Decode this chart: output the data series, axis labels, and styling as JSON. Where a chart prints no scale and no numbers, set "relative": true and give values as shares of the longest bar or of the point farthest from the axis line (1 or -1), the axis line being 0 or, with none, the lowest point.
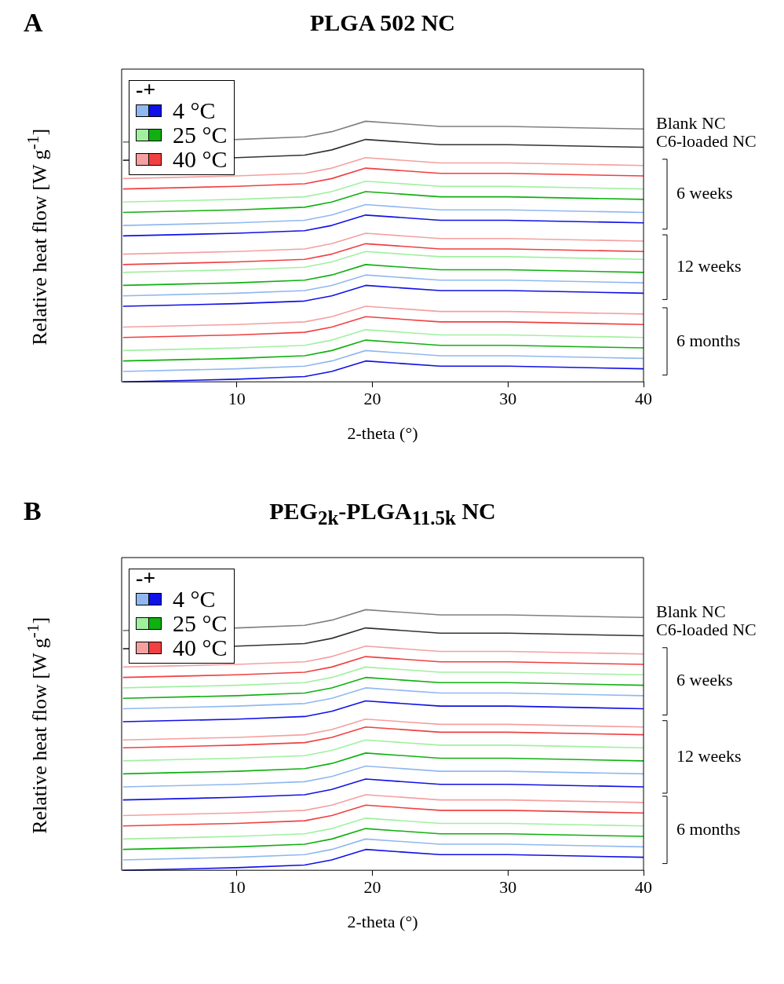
{
  "chart_data": [
    {
      "type": "line",
      "title": "PLGA 502 NC",
      "xlabel": "2-theta (°)",
      "ylabel": "Relative heat flow [W g$^{-1}$]",
      "relative": true,
      "marker": "none",
      "xlim": [
        1.5,
        40
      ],
      "xticks": [
        10,
        20,
        30,
        40
      ],
      "annotations": [
        "A",
        "6 weeks",
        "12 weeks",
        "6 months",
        "-+",
        "4 °C",
        "25 °C",
        "40 °C"
      ],
      "x": [
        1.6,
        10,
        15,
        17,
        19.5,
        25,
        30,
        40
      ],
      "series": [
        {
          "name": "Blank NC",
          "color": "#808080",
          "values": [
            0.92,
            0.93,
            0.94,
            0.96,
            1.0,
            0.98,
            0.98,
            0.97
          ]
        },
        {
          "name": "C6-loaded NC",
          "color": "#333333",
          "values": [
            0.85,
            0.86,
            0.87,
            0.89,
            0.93,
            0.91,
            0.91,
            0.9
          ]
        },
        {
          "color": "#f4a0a0",
          "values": [
            0.78,
            0.79,
            0.8,
            0.82,
            0.86,
            0.84,
            0.84,
            0.83
          ]
        },
        {
          "color": "#f04040",
          "values": [
            0.74,
            0.75,
            0.76,
            0.78,
            0.82,
            0.8,
            0.8,
            0.79
          ]
        },
        {
          "color": "#a0f0a0",
          "values": [
            0.69,
            0.7,
            0.71,
            0.73,
            0.77,
            0.75,
            0.75,
            0.74
          ]
        },
        {
          "color": "#10b010",
          "values": [
            0.65,
            0.66,
            0.67,
            0.69,
            0.73,
            0.71,
            0.71,
            0.7
          ]
        },
        {
          "color": "#90b8f0",
          "values": [
            0.6,
            0.61,
            0.62,
            0.64,
            0.68,
            0.66,
            0.66,
            0.65
          ]
        },
        {
          "color": "#1010e8",
          "values": [
            0.56,
            0.57,
            0.58,
            0.6,
            0.64,
            0.62,
            0.62,
            0.61
          ]
        },
        {
          "color": "#f4a0a0",
          "values": [
            0.49,
            0.5,
            0.51,
            0.53,
            0.57,
            0.55,
            0.55,
            0.54
          ]
        },
        {
          "color": "#f04040",
          "values": [
            0.45,
            0.46,
            0.47,
            0.49,
            0.53,
            0.51,
            0.51,
            0.5
          ]
        },
        {
          "color": "#a0f0a0",
          "values": [
            0.42,
            0.43,
            0.44,
            0.46,
            0.5,
            0.48,
            0.48,
            0.47
          ]
        },
        {
          "color": "#10b010",
          "values": [
            0.37,
            0.38,
            0.39,
            0.41,
            0.45,
            0.43,
            0.43,
            0.42
          ]
        },
        {
          "color": "#90b8f0",
          "values": [
            0.33,
            0.34,
            0.35,
            0.37,
            0.41,
            0.39,
            0.39,
            0.38
          ]
        },
        {
          "color": "#1010e8",
          "values": [
            0.29,
            0.3,
            0.31,
            0.33,
            0.37,
            0.35,
            0.35,
            0.34
          ]
        },
        {
          "color": "#f4a0a0",
          "values": [
            0.21,
            0.22,
            0.23,
            0.25,
            0.29,
            0.27,
            0.27,
            0.26
          ]
        },
        {
          "color": "#f04040",
          "values": [
            0.17,
            0.18,
            0.19,
            0.21,
            0.25,
            0.23,
            0.23,
            0.22
          ]
        },
        {
          "color": "#a0f0a0",
          "values": [
            0.12,
            0.13,
            0.14,
            0.16,
            0.2,
            0.18,
            0.18,
            0.17
          ]
        },
        {
          "color": "#10b010",
          "values": [
            0.08,
            0.09,
            0.1,
            0.12,
            0.16,
            0.14,
            0.14,
            0.13
          ]
        },
        {
          "color": "#90b8f0",
          "values": [
            0.04,
            0.05,
            0.06,
            0.08,
            0.12,
            0.1,
            0.1,
            0.09
          ]
        },
        {
          "color": "#1010e8",
          "values": [
            0.0,
            0.01,
            0.02,
            0.04,
            0.08,
            0.06,
            0.06,
            0.05
          ]
        }
      ]
    },
    {
      "type": "line",
      "title": "PEG$_{2k}$-PLGA$_{11.5k}$ NC",
      "xlabel": "2-theta (°)",
      "ylabel": "Relative heat flow [W g$^{-1}$]",
      "relative": true,
      "marker": "none",
      "xlim": [
        1.5,
        40
      ],
      "xticks": [
        10,
        20,
        30,
        40
      ],
      "annotations": [
        "B",
        "6 weeks",
        "12 weeks",
        "6 months",
        "-+",
        "4 °C",
        "25 °C",
        "40 °C"
      ],
      "x": [
        1.6,
        10,
        15,
        17,
        19.5,
        25,
        30,
        40
      ],
      "series": [
        {
          "name": "Blank NC",
          "color": "#808080",
          "values": [
            0.92,
            0.93,
            0.94,
            0.96,
            1.0,
            0.98,
            0.98,
            0.97
          ]
        },
        {
          "name": "C6-loaded NC",
          "color": "#333333",
          "values": [
            0.85,
            0.86,
            0.87,
            0.89,
            0.93,
            0.91,
            0.91,
            0.9
          ]
        },
        {
          "color": "#f4a0a0",
          "values": [
            0.78,
            0.79,
            0.8,
            0.82,
            0.86,
            0.84,
            0.84,
            0.83
          ]
        },
        {
          "color": "#f04040",
          "values": [
            0.74,
            0.75,
            0.76,
            0.78,
            0.82,
            0.8,
            0.8,
            0.79
          ]
        },
        {
          "color": "#a0f0a0",
          "values": [
            0.7,
            0.71,
            0.72,
            0.74,
            0.78,
            0.76,
            0.76,
            0.75
          ]
        },
        {
          "color": "#10b010",
          "values": [
            0.66,
            0.67,
            0.68,
            0.7,
            0.74,
            0.72,
            0.72,
            0.71
          ]
        },
        {
          "color": "#90b8f0",
          "values": [
            0.62,
            0.63,
            0.64,
            0.66,
            0.7,
            0.68,
            0.68,
            0.67
          ]
        },
        {
          "color": "#1010e8",
          "values": [
            0.57,
            0.58,
            0.59,
            0.61,
            0.65,
            0.63,
            0.63,
            0.62
          ]
        },
        {
          "color": "#f4a0a0",
          "values": [
            0.5,
            0.51,
            0.52,
            0.54,
            0.58,
            0.56,
            0.56,
            0.55
          ]
        },
        {
          "color": "#f04040",
          "values": [
            0.47,
            0.48,
            0.49,
            0.51,
            0.55,
            0.53,
            0.53,
            0.52
          ]
        },
        {
          "color": "#a0f0a0",
          "values": [
            0.42,
            0.43,
            0.44,
            0.46,
            0.5,
            0.48,
            0.48,
            0.47
          ]
        },
        {
          "color": "#10b010",
          "values": [
            0.37,
            0.38,
            0.39,
            0.41,
            0.45,
            0.43,
            0.43,
            0.42
          ]
        },
        {
          "color": "#90b8f0",
          "values": [
            0.32,
            0.33,
            0.34,
            0.36,
            0.4,
            0.38,
            0.38,
            0.37
          ]
        },
        {
          "color": "#1010e8",
          "values": [
            0.27,
            0.28,
            0.29,
            0.31,
            0.35,
            0.33,
            0.33,
            0.32
          ]
        },
        {
          "color": "#f4a0a0",
          "values": [
            0.21,
            0.22,
            0.23,
            0.25,
            0.29,
            0.27,
            0.27,
            0.26
          ]
        },
        {
          "color": "#f04040",
          "values": [
            0.17,
            0.18,
            0.19,
            0.21,
            0.25,
            0.23,
            0.23,
            0.22
          ]
        },
        {
          "color": "#a0f0a0",
          "values": [
            0.12,
            0.13,
            0.14,
            0.16,
            0.2,
            0.18,
            0.18,
            0.17
          ]
        },
        {
          "color": "#10b010",
          "values": [
            0.08,
            0.09,
            0.1,
            0.12,
            0.16,
            0.14,
            0.14,
            0.13
          ]
        },
        {
          "color": "#90b8f0",
          "values": [
            0.04,
            0.05,
            0.06,
            0.08,
            0.12,
            0.1,
            0.1,
            0.09
          ]
        },
        {
          "color": "#1010e8",
          "values": [
            0.0,
            0.01,
            0.02,
            0.04,
            0.08,
            0.06,
            0.06,
            0.05
          ]
        }
      ]
    }
  ]
}
